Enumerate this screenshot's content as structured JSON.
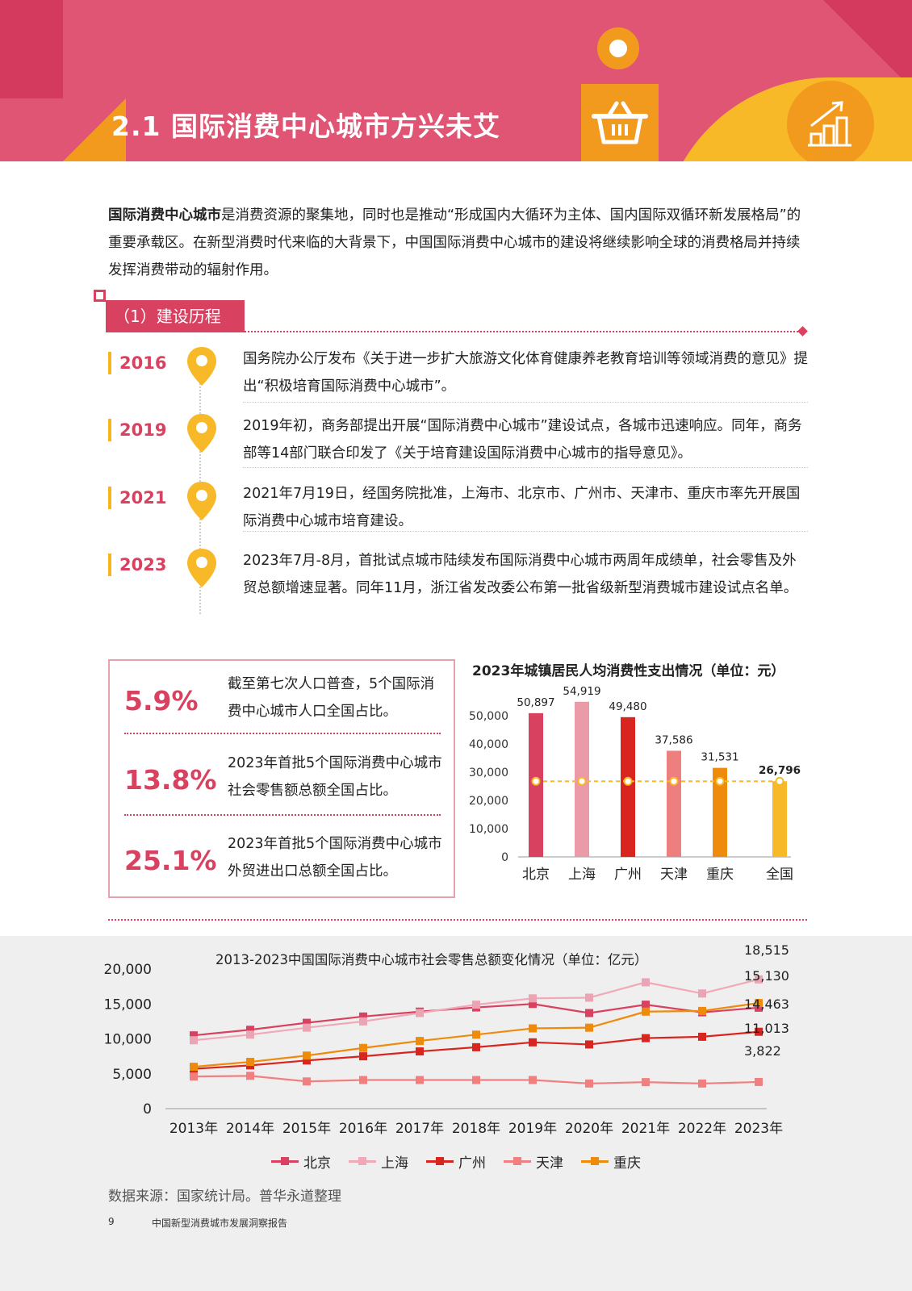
{
  "header": {
    "title": "2.1 国际消费中心城市方兴未艾"
  },
  "intro": {
    "bold": "国际消费中心城市",
    "rest": "是消费资源的聚集地，同时也是推动“形成国内大循环为主体、国内国际双循环新发展格局”的重要承载区。在新型消费时代来临的大背景下，中国国际消费中心城市的建设将继续影响全球的消费格局并持续发挥消费带动的辐射作用。"
  },
  "section": {
    "label": "（1）建设历程"
  },
  "timeline": [
    {
      "year": "2016",
      "text": "国务院办公厅发布《关于进一步扩大旅游文化体育健康养老教育培训等领域消费的意见》提出“积极培育国际消费中心城市”。"
    },
    {
      "year": "2019",
      "text": "2019年初，商务部提出开展“国际消费中心城市”建设试点，各城市迅速响应。同年，商务部等14部门联合印发了《关于培育建设国际消费中心城市的指导意见》。"
    },
    {
      "year": "2021",
      "text": "2021年7月19日，经国务院批准，上海市、北京市、广州市、天津市、重庆市率先开展国际消费中心城市培育建设。"
    },
    {
      "year": "2023",
      "text": "2023年7月-8月，首批试点城市陆续发布国际消费中心城市两周年成绩单，社会零售及外贸总额增速显著。同年11月，浙江省发改委公布第一批省级新型消费城市建设试点名单。"
    }
  ],
  "stats": [
    {
      "value": "5.9%",
      "text": "截至第七次人口普查，5个国际消费中心城市人口全国占比。"
    },
    {
      "value": "13.8%",
      "text": "2023年首批5个国际消费中心城市社会零售额总额全国占比。"
    },
    {
      "value": "25.1%",
      "text": "2023年首批5个国际消费中心城市外贸进出口总额全国占比。"
    }
  ],
  "chart_data": [
    {
      "type": "bar",
      "title": "2023年城镇居民人均消费性支出情况（单位：元）",
      "categories": [
        "北京",
        "上海",
        "广州",
        "天津",
        "重庆",
        "全国"
      ],
      "values": [
        50897,
        54919,
        49480,
        37586,
        31531,
        26796
      ],
      "value_labels": [
        "50,897",
        "54,919",
        "49,480",
        "37,586",
        "31,531",
        "26,796"
      ],
      "colors": [
        "#d8415f",
        "#eb9aa8",
        "#d8251f",
        "#ee7f7f",
        "#ee8a0c",
        "#f8b928"
      ],
      "reference_line": 26796,
      "ylim": [
        0,
        50000
      ],
      "yticks": [
        "0",
        "10,000",
        "20,000",
        "30,000",
        "40,000",
        "50,000"
      ],
      "ytick_values": [
        0,
        10000,
        20000,
        30000,
        40000,
        50000
      ]
    },
    {
      "type": "line",
      "title": "2013-2023中国国际消费中心城市社会零售总额变化情况（单位：亿元）",
      "x": [
        "2013年",
        "2014年",
        "2015年",
        "2016年",
        "2017年",
        "2018年",
        "2019年",
        "2020年",
        "2021年",
        "2022年",
        "2023年"
      ],
      "ylim": [
        0,
        20000
      ],
      "yticks": [
        "0",
        "5,000",
        "10,000",
        "15,000",
        "20,000"
      ],
      "ytick_values": [
        0,
        5000,
        10000,
        15000,
        20000
      ],
      "series": [
        {
          "name": "北京",
          "color": "#d8415f",
          "marker": "#d8415f",
          "values": [
            10500,
            11300,
            12300,
            13200,
            13900,
            14500,
            15000,
            13700,
            14900,
            13800,
            14463
          ]
        },
        {
          "name": "上海",
          "color": "#f1a8b7",
          "marker": "#eba4b3",
          "values": [
            9800,
            10600,
            11600,
            12500,
            13700,
            14900,
            15800,
            15900,
            18100,
            16500,
            18515
          ]
        },
        {
          "name": "广州",
          "color": "#d8251f",
          "marker": "#d8251f",
          "values": [
            5700,
            6200,
            6900,
            7500,
            8200,
            8800,
            9500,
            9200,
            10100,
            10300,
            11013
          ]
        },
        {
          "name": "天津",
          "color": "#f08080",
          "marker": "#f08080",
          "values": [
            4600,
            4700,
            3900,
            4100,
            4100,
            4100,
            4100,
            3600,
            3800,
            3600,
            3822
          ]
        },
        {
          "name": "重庆",
          "color": "#ee8a0c",
          "marker": "#ee8a0c",
          "values": [
            6000,
            6700,
            7600,
            8700,
            9700,
            10600,
            11500,
            11600,
            13900,
            14000,
            15130
          ]
        }
      ],
      "end_labels": [
        "18,515",
        "15,130",
        "14,463",
        "11,013",
        "3,822"
      ]
    }
  ],
  "source": "数据来源：国家统计局。普华永道整理",
  "footer": {
    "page": "9",
    "report": "中国新型消费城市发展洞察报告"
  }
}
